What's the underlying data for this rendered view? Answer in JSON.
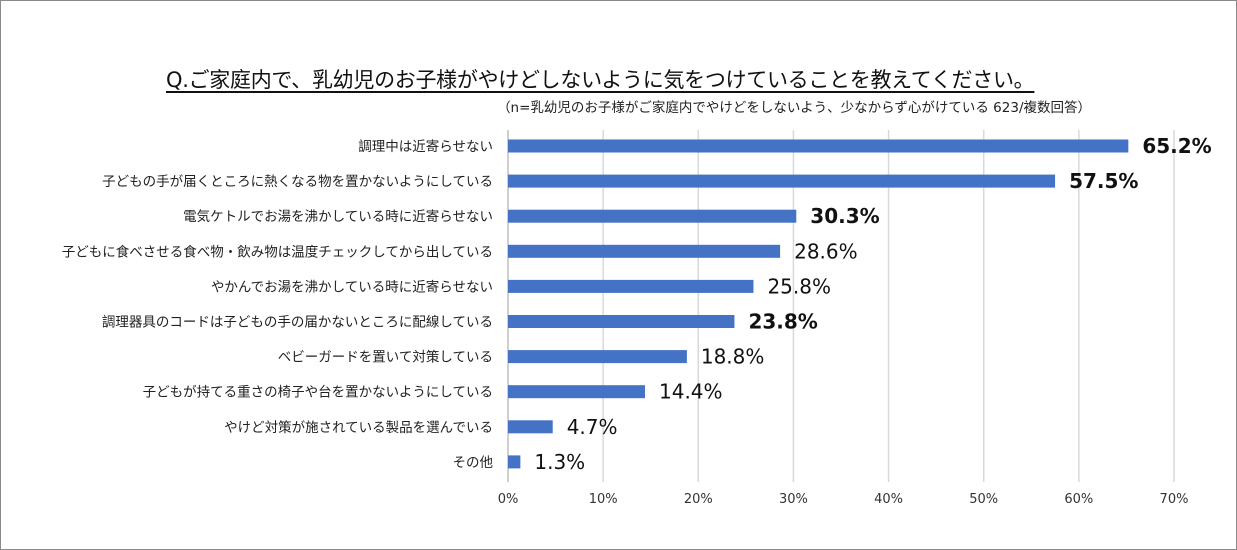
{
  "title": "Q.ご家庭内で、乳幼児のお子様がやけどしないように気をつけていることを教えてください。",
  "subtitle": "（n=乳幼児のお子様がご家庭内でやけどをしないよう、少なからず心がけている 623/複数回答）",
  "chart_data": {
    "type": "bar",
    "orientation": "horizontal",
    "title": "Q.ご家庭内で、乳幼児のお子様がやけどしないように気をつけていることを教えてください。",
    "categories": [
      "調理中は近寄らせない",
      "子どもの手が届くところに熱くなる物を置かないようにしている",
      "電気ケトルでお湯を沸かしている時に近寄らせない",
      "子どもに食べさせる食べ物・飲み物は温度チェックしてから出している",
      "やかんでお湯を沸かしている時に近寄らせない",
      "調理器具のコードは子どもの手の届かないところに配線している",
      "ベビーガードを置いて対策している",
      "子どもが持てる重さの椅子や台を置かないようにしている",
      "やけど対策が施されている製品を選んでいる",
      "その他"
    ],
    "values": [
      65.2,
      57.5,
      30.3,
      28.6,
      25.8,
      23.8,
      18.8,
      14.4,
      4.7,
      1.3
    ],
    "value_labels": [
      "65.2%",
      "57.5%",
      "30.3%",
      "28.6%",
      "25.8%",
      "23.8%",
      "18.8%",
      "14.4%",
      "4.7%",
      "1.3%"
    ],
    "bold_labels": [
      true,
      true,
      true,
      false,
      false,
      true,
      false,
      false,
      false,
      false
    ],
    "xlim": [
      0,
      70
    ],
    "xticks": [
      "0%",
      "10%",
      "20%",
      "30%",
      "40%",
      "50%",
      "60%",
      "70%"
    ],
    "grid": true,
    "bar_color": "#4472C4",
    "grid_color": "#d9d9d9"
  }
}
